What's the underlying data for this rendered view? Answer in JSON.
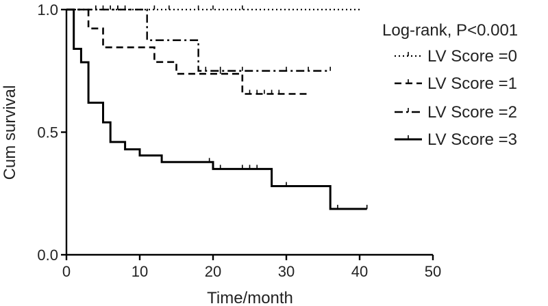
{
  "chart_data": {
    "type": "line",
    "title": "",
    "xlabel": "Time/month",
    "ylabel": "Cum survival",
    "xlim": [
      0,
      50
    ],
    "ylim": [
      0.0,
      1.0
    ],
    "xticks": [
      0,
      10,
      20,
      30,
      40,
      50
    ],
    "yticks": [
      0.0,
      0.5,
      1.0
    ],
    "ytick_labels": [
      "0.0",
      "0.5",
      "1.0"
    ],
    "grid": false,
    "legend_title": "Log-rank, P<0.001",
    "legend_position": "top-right",
    "series": [
      {
        "name": "LV Score =0",
        "style": "dotted",
        "steps": [
          [
            0,
            1.0
          ],
          [
            40,
            1.0
          ]
        ],
        "censored": [
          [
            4,
            1.0
          ],
          [
            5,
            1.0
          ],
          [
            6,
            1.0
          ],
          [
            7,
            1.0
          ],
          [
            12,
            1.0
          ],
          [
            14,
            1.0
          ],
          [
            18,
            1.0
          ],
          [
            20,
            1.0
          ],
          [
            24,
            1.0
          ]
        ]
      },
      {
        "name": "LV Score =1",
        "style": "dashed",
        "steps": [
          [
            0,
            1.0
          ],
          [
            3,
            0.923
          ],
          [
            5,
            0.846
          ],
          [
            12,
            0.786
          ],
          [
            15,
            0.738
          ],
          [
            24,
            0.656
          ],
          [
            33,
            0.656
          ]
        ],
        "censored": [
          [
            21,
            0.738
          ],
          [
            25,
            0.656
          ],
          [
            26,
            0.656
          ],
          [
            27,
            0.656
          ],
          [
            28,
            0.656
          ],
          [
            29,
            0.656
          ]
        ]
      },
      {
        "name": "LV Score =2",
        "style": "dashdot",
        "steps": [
          [
            0,
            1.0
          ],
          [
            11,
            0.875
          ],
          [
            18,
            0.75
          ],
          [
            36,
            0.75
          ]
        ],
        "censored": [
          [
            4,
            1.0
          ],
          [
            6,
            1.0
          ],
          [
            7,
            1.0
          ],
          [
            8,
            1.0
          ],
          [
            19,
            0.75
          ],
          [
            21,
            0.75
          ],
          [
            24,
            0.75
          ],
          [
            30,
            0.75
          ],
          [
            33,
            0.75
          ],
          [
            36,
            0.75
          ]
        ]
      },
      {
        "name": "LV Score =3",
        "style": "solid",
        "steps": [
          [
            0,
            1.0
          ],
          [
            1,
            0.84
          ],
          [
            2,
            0.785
          ],
          [
            3,
            0.62
          ],
          [
            5,
            0.54
          ],
          [
            6,
            0.46
          ],
          [
            8,
            0.43
          ],
          [
            10,
            0.405
          ],
          [
            13,
            0.378
          ],
          [
            20,
            0.35
          ],
          [
            28,
            0.28
          ],
          [
            36,
            0.187
          ],
          [
            41,
            0.187
          ]
        ],
        "censored": [
          [
            19.5,
            0.378
          ],
          [
            21,
            0.35
          ],
          [
            24,
            0.35
          ],
          [
            25,
            0.35
          ],
          [
            26,
            0.35
          ],
          [
            30,
            0.28
          ],
          [
            37,
            0.187
          ],
          [
            41,
            0.187
          ]
        ]
      }
    ]
  }
}
